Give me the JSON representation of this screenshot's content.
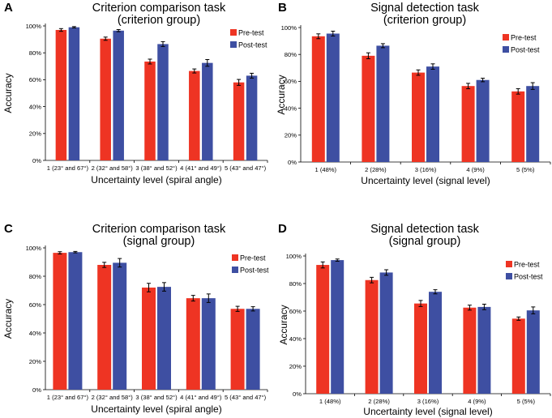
{
  "colors": {
    "pretest": "#ee3423",
    "posttest": "#3e4fa2"
  },
  "chart_data": [
    {
      "type": "bar",
      "panel": "A",
      "title": [
        "Criterion comparison task",
        "(criterion group)"
      ],
      "xlabel": "Uncertainty level (spiral angle)",
      "ylabel": "Accuracy",
      "ylim": [
        0,
        100
      ],
      "yticks": [
        "0%",
        "20%",
        "40%",
        "60%",
        "80%",
        "100%"
      ],
      "categories": [
        "1 (23° and 67°)",
        "2 (32° and 58°)",
        "3 (38° and 52°)",
        "4 (41° and 49°)",
        "5 (43° and 47°)"
      ],
      "series": [
        {
          "name": "Pre-test",
          "values": [
            97,
            90.5,
            73.5,
            66.5,
            58
          ],
          "errors": [
            1,
            1.2,
            1.8,
            1.5,
            2.2
          ]
        },
        {
          "name": "Post-test",
          "values": [
            99,
            96.5,
            86.5,
            72.5,
            63
          ],
          "errors": [
            0.5,
            0.8,
            1.8,
            2.5,
            1.8
          ]
        }
      ]
    },
    {
      "type": "bar",
      "panel": "B",
      "title": [
        "Signal detection task",
        "(criterion group)"
      ],
      "xlabel": "Uncertainty level (signal level)",
      "ylabel": "Accuracy",
      "ylim": [
        0,
        100
      ],
      "yticks": [
        "0%",
        "20%",
        "40%",
        "60%",
        "80%",
        "100%"
      ],
      "categories": [
        "1 (48%)",
        "2 (28%)",
        "3 (16%)",
        "4 (9%)",
        "5 (5%)"
      ],
      "series": [
        {
          "name": "Pre-test",
          "values": [
            93.5,
            79,
            66.5,
            56.5,
            52.5
          ],
          "errors": [
            1.8,
            2.2,
            2,
            2,
            2
          ]
        },
        {
          "name": "Post-test",
          "values": [
            95.5,
            86.5,
            71,
            61,
            56.5
          ],
          "errors": [
            1.8,
            1.5,
            2,
            1.3,
            2.5
          ]
        }
      ]
    },
    {
      "type": "bar",
      "panel": "C",
      "title": [
        "Criterion comparison task",
        "(signal group)"
      ],
      "xlabel": "Uncertainty level (spiral angle)",
      "ylabel": "Accuracy",
      "ylim": [
        0,
        100
      ],
      "yticks": [
        "0%",
        "20%",
        "40%",
        "60%",
        "80%",
        "100%"
      ],
      "categories": [
        "1 (23° and 67°)",
        "2 (32° and 58°)",
        "3 (38° and 52°)",
        "4 (41° and 49°)",
        "5 (43° and 47°)"
      ],
      "series": [
        {
          "name": "Pre-test",
          "values": [
            96.5,
            88,
            72,
            64.5,
            57
          ],
          "errors": [
            0.8,
            1.8,
            3,
            2,
            1.8
          ]
        },
        {
          "name": "Post-test",
          "values": [
            97,
            89.5,
            72.5,
            64.5,
            57
          ],
          "errors": [
            0.5,
            3,
            3,
            3,
            1.5
          ]
        }
      ]
    },
    {
      "type": "bar",
      "panel": "D",
      "title": [
        "Signal detection task",
        "(signal group)"
      ],
      "xlabel": "Uncertainty level (signal level)",
      "ylabel": "Accuracy",
      "ylim": [
        0,
        100
      ],
      "yticks": [
        "0%",
        "20%",
        "40%",
        "60%",
        "80%",
        "100%"
      ],
      "categories": [
        "1 (48%)",
        "2 (28%)",
        "3 (16%)",
        "4 (9%)",
        "5 (5%)"
      ],
      "series": [
        {
          "name": "Pre-test",
          "values": [
            93.5,
            82.5,
            65.5,
            62.5,
            54.5
          ],
          "errors": [
            2.2,
            2,
            2.2,
            1.8,
            1.2
          ]
        },
        {
          "name": "Post-test",
          "values": [
            97,
            88,
            74,
            63,
            60.5
          ],
          "errors": [
            0.8,
            2,
            1.5,
            2,
            2.5
          ]
        }
      ]
    }
  ]
}
